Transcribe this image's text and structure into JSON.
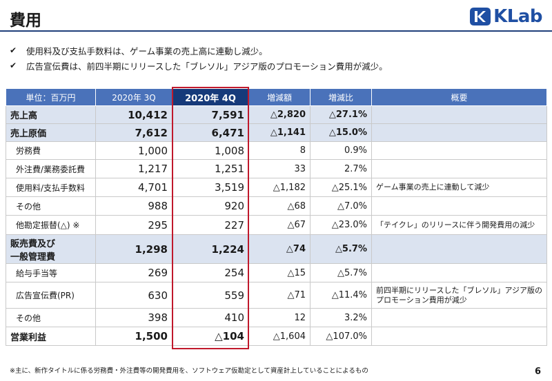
{
  "title": "費用",
  "logo": {
    "text": "KLab",
    "color": "#1f4fa3",
    "icon": "klab-logo-icon"
  },
  "bullets": [
    "使用料及び支払手数料は、ゲーム事業の売上高に連動し減少。",
    "広告宣伝費は、前四半期にリリースした「ブレソル」アジア版のプロモーション費用が減少。"
  ],
  "colors": {
    "header": "#4a72ba",
    "header_highlight": "#163a7a",
    "row_highlight": "#dbe3f0",
    "box": "#c0182b"
  },
  "table": {
    "headers": [
      "単位：百万円",
      "2020年 3Q",
      "2020年 4Q",
      "増減額",
      "増減比",
      "概要"
    ],
    "rows": [
      {
        "label": "売上高",
        "q3": "10,412",
        "q4": "7,591",
        "diff": "△2,820",
        "ratio": "△27.1%",
        "note": ""
      },
      {
        "label": "売上原価",
        "q3": "7,612",
        "q4": "6,471",
        "diff": "△1,141",
        "ratio": "△15.0%",
        "note": ""
      },
      {
        "label": "労務費",
        "q3": "1,000",
        "q4": "1,008",
        "diff": "8",
        "ratio": "0.9%",
        "note": ""
      },
      {
        "label": "外注費/業務委託費",
        "q3": "1,217",
        "q4": "1,251",
        "diff": "33",
        "ratio": "2.7%",
        "note": ""
      },
      {
        "label": "使用料/支払手数料",
        "q3": "4,701",
        "q4": "3,519",
        "diff": "△1,182",
        "ratio": "△25.1%",
        "note": "ゲーム事業の売上に連動して減少"
      },
      {
        "label": "その他",
        "q3": "988",
        "q4": "920",
        "diff": "△68",
        "ratio": "△7.0%",
        "note": ""
      },
      {
        "label": "他勘定振替(△) ※",
        "q3": "295",
        "q4": "227",
        "diff": "△67",
        "ratio": "△23.0%",
        "note": "「テイクレ」のリリースに伴う開発費用の減少"
      },
      {
        "label_l1": "販売費及び",
        "label_l2": "一般管理費",
        "q3": "1,298",
        "q4": "1,224",
        "diff": "△74",
        "ratio": "△5.7%",
        "note": ""
      },
      {
        "label": "給与手当等",
        "q3": "269",
        "q4": "254",
        "diff": "△15",
        "ratio": "△5.7%",
        "note": ""
      },
      {
        "label": "広告宣伝費(PR)",
        "q3": "630",
        "q4": "559",
        "diff": "△71",
        "ratio": "△11.4%",
        "note_l1": "前四半期にリリースした「ブレソル」アジア版の",
        "note_l2": "プロモーション費用が減少"
      },
      {
        "label": "その他",
        "q3": "398",
        "q4": "410",
        "diff": "12",
        "ratio": "3.2%",
        "note": ""
      },
      {
        "label": "営業利益",
        "q3": "1,500",
        "q4": "△104",
        "diff": "△1,604",
        "ratio": "△107.0%",
        "note": ""
      }
    ]
  },
  "footnote": "※主に、新作タイトルに係る労務費・外注費等の開発費用を、ソフトウェア仮勘定として資産計上していることによるもの",
  "page_number": "6"
}
